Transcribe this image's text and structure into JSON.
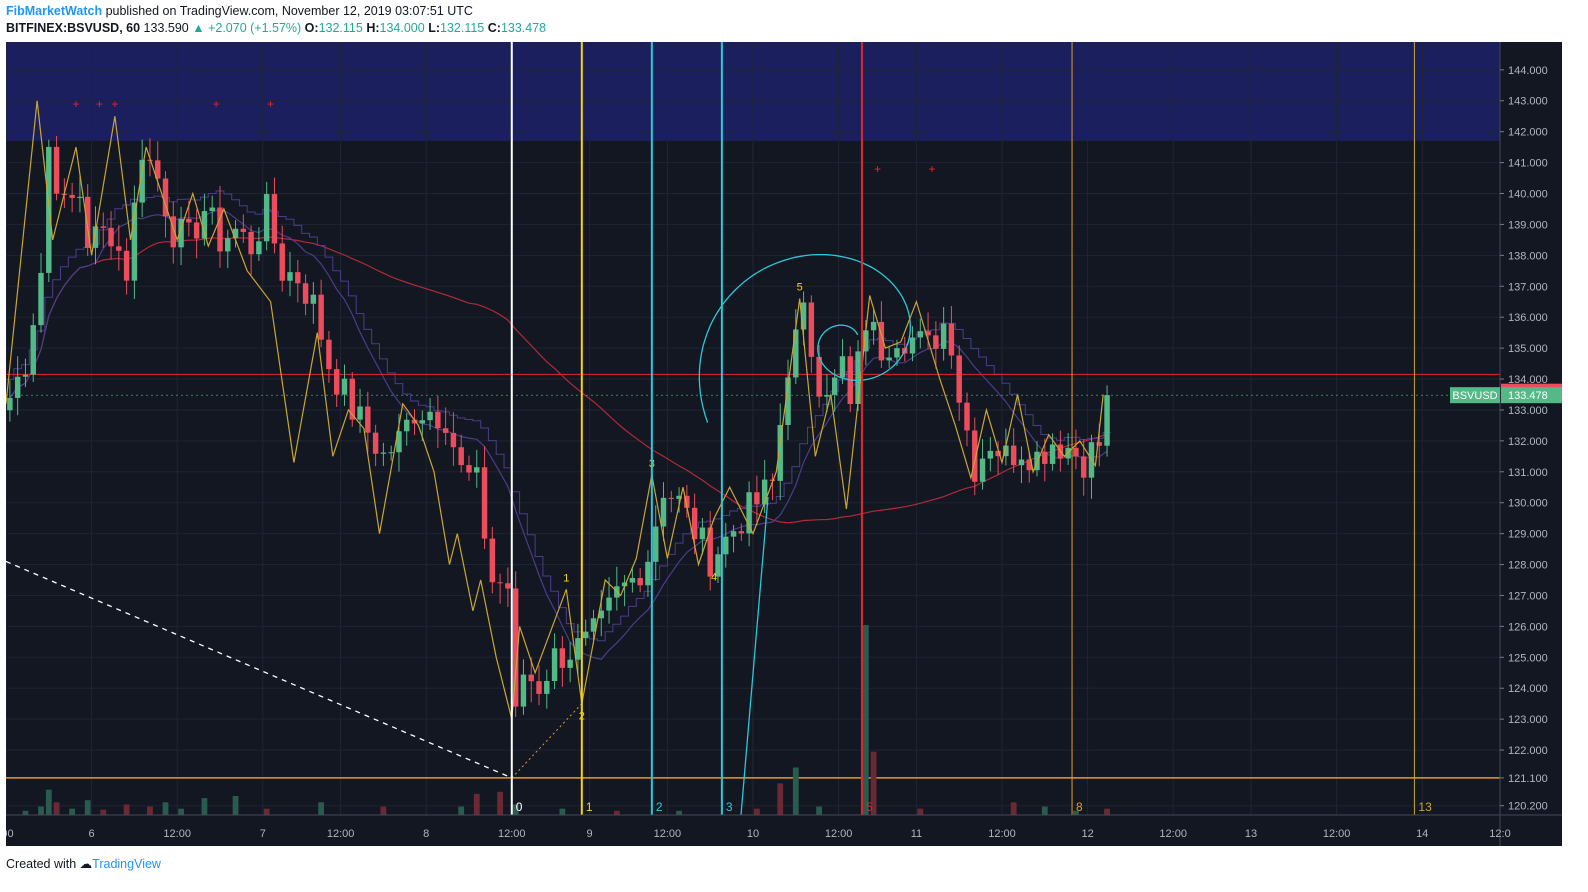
{
  "header": {
    "author": "FibMarketWatch",
    "published": "published on TradingView.com, November 12, 2019 03:07:51 UTC",
    "symbol": "BITFINEX:BSVUSD, 60",
    "last": "133.590",
    "change": "▲ +2.070 (+1.57%)",
    "o_label": "O:",
    "o_value": "132.115",
    "h_label": "H:",
    "h_value": "134.000",
    "l_label": "L:",
    "l_value": "132.115",
    "c_label": "C:",
    "c_value": "133.478"
  },
  "footer": {
    "created_with": "Created with",
    "brand": "TradingView"
  },
  "colors": {
    "background": "#131722",
    "grid": "#1f2433",
    "up": "#53b987",
    "down": "#eb4d5c",
    "zigzag": "#c9a633",
    "spiral": "#2ec7d6",
    "ma_red": "#b02a36",
    "ma_purple": "#4b3c8a",
    "zone": "#1b1f5e",
    "white_line": "#ffffff",
    "yellow_line": "#f5d40c",
    "cyan_line": "#2ec7d6",
    "red_line": "#e5252b",
    "orange_line": "#e39b2b"
  },
  "chart_data": {
    "type": "candlestick",
    "symbol": "BITFINEX:BSVUSD",
    "interval": "60",
    "y_axis": {
      "ylim": [
        119.9,
        144.9
      ],
      "ticks": [
        "120.200",
        "121.100",
        "122.000",
        "123.000",
        "124.000",
        "125.000",
        "126.000",
        "127.000",
        "128.000",
        "129.000",
        "130.000",
        "131.000",
        "132.000",
        "133.000",
        "134.000",
        "135.000",
        "136.000",
        "137.000",
        "138.000",
        "139.000",
        "140.000",
        "141.000",
        "142.000",
        "143.000",
        "144.000"
      ],
      "tick_values": [
        120.2,
        121.1,
        122,
        123,
        124,
        125,
        126,
        127,
        128,
        129,
        130,
        131,
        132,
        133,
        134,
        135,
        136,
        137,
        138,
        139,
        140,
        141,
        142,
        143,
        144
      ]
    },
    "x_axis": {
      "bar_range": [
        0,
        192
      ],
      "labels": [
        {
          "bar": 0,
          "text": ":00"
        },
        {
          "bar": 11,
          "text": "6"
        },
        {
          "bar": 22,
          "text": "12:00"
        },
        {
          "bar": 33,
          "text": "7"
        },
        {
          "bar": 43,
          "text": "12:00"
        },
        {
          "bar": 54,
          "text": "8"
        },
        {
          "bar": 65,
          "text": "12:00"
        },
        {
          "bar": 75,
          "text": "9"
        },
        {
          "bar": 85,
          "text": "12:00"
        },
        {
          "bar": 96,
          "text": "10"
        },
        {
          "bar": 107,
          "text": "12:00"
        },
        {
          "bar": 117,
          "text": "11"
        },
        {
          "bar": 128,
          "text": "12:00"
        },
        {
          "bar": 139,
          "text": "12"
        },
        {
          "bar": 150,
          "text": "12:00"
        },
        {
          "bar": 160,
          "text": "13"
        },
        {
          "bar": 171,
          "text": "12:00"
        },
        {
          "bar": 182,
          "text": "14"
        },
        {
          "bar": 192,
          "text": "12:0"
        }
      ]
    },
    "close_anchors": [
      [
        0,
        133.4
      ],
      [
        2,
        134.6
      ],
      [
        4,
        137.5
      ],
      [
        5,
        141.5
      ],
      [
        7,
        139.5
      ],
      [
        9,
        140.0
      ],
      [
        10,
        138.5
      ],
      [
        13,
        138.8
      ],
      [
        15,
        137.5
      ],
      [
        17,
        141.5
      ],
      [
        19,
        140.5
      ],
      [
        21,
        138.8
      ],
      [
        23,
        138.5
      ],
      [
        25,
        139.5
      ],
      [
        27,
        138.5
      ],
      [
        29,
        138.8
      ],
      [
        31,
        138.3
      ],
      [
        33,
        139.4
      ],
      [
        35,
        137.5
      ],
      [
        37,
        137.3
      ],
      [
        39,
        136.4
      ],
      [
        41,
        134.5
      ],
      [
        44,
        133.0
      ],
      [
        46,
        132.3
      ],
      [
        48,
        131.5
      ],
      [
        50,
        132.0
      ],
      [
        52,
        133.0
      ],
      [
        54,
        133.0
      ],
      [
        56,
        132.8
      ],
      [
        58,
        131.0
      ],
      [
        60,
        130.6
      ],
      [
        62,
        127.5
      ],
      [
        64,
        127.3
      ],
      [
        65,
        123.0
      ],
      [
        66,
        124.5
      ],
      [
        68,
        124.1
      ],
      [
        70,
        125.0
      ],
      [
        72,
        125.2
      ],
      [
        74,
        125.4
      ],
      [
        76,
        126.0
      ],
      [
        78,
        127.0
      ],
      [
        80,
        127.5
      ],
      [
        82,
        128.3
      ],
      [
        84,
        130.5
      ],
      [
        86,
        130.0
      ],
      [
        88,
        129.1
      ],
      [
        90,
        128.2
      ],
      [
        92,
        128.8
      ],
      [
        94,
        129.5
      ],
      [
        96,
        130.0
      ],
      [
        98,
        130.6
      ],
      [
        100,
        134.5
      ],
      [
        102,
        136.0
      ],
      [
        104,
        134.0
      ],
      [
        106,
        133.8
      ],
      [
        107,
        134.5
      ],
      [
        108,
        133.0
      ],
      [
        110,
        135.9
      ],
      [
        112,
        135.0
      ],
      [
        114,
        135.5
      ],
      [
        116,
        135.3
      ],
      [
        118,
        135.0
      ],
      [
        120,
        135.8
      ],
      [
        121,
        135.3
      ],
      [
        122,
        133.5
      ],
      [
        124,
        131.2
      ],
      [
        126,
        132.0
      ],
      [
        128,
        131.5
      ],
      [
        130,
        131.8
      ],
      [
        132,
        131.5
      ],
      [
        134,
        132.0
      ],
      [
        136,
        131.8
      ],
      [
        138,
        131.4
      ],
      [
        140,
        131.9
      ],
      [
        141,
        133.48
      ]
    ],
    "last_price": 133.59,
    "close_price": 133.478,
    "price_label": "133.590",
    "symbol_label": "BSVUSD",
    "symbol_label_price": "133.478",
    "horizontal_lines": [
      134.15,
      121.1
    ],
    "resistance_zone": [
      141.7,
      144.9
    ],
    "zigzag": [
      [
        0,
        133.2
      ],
      [
        4,
        143.0
      ],
      [
        6,
        138.5
      ],
      [
        9,
        141.5
      ],
      [
        11,
        138.0
      ],
      [
        14,
        142.5
      ],
      [
        16,
        138.5
      ],
      [
        18,
        141.5
      ],
      [
        22,
        138.5
      ],
      [
        24,
        140.0
      ],
      [
        26,
        138.3
      ],
      [
        28,
        139.5
      ],
      [
        31,
        137.5
      ],
      [
        34,
        136.5
      ],
      [
        37,
        131.3
      ],
      [
        40,
        135.5
      ],
      [
        42,
        131.5
      ],
      [
        44,
        133.0
      ],
      [
        46,
        132.4
      ],
      [
        48,
        129.0
      ],
      [
        51,
        133.2
      ],
      [
        53,
        132.5
      ],
      [
        55,
        131.0
      ],
      [
        57,
        128.0
      ],
      [
        58,
        129.0
      ],
      [
        60,
        126.5
      ],
      [
        61,
        127.5
      ],
      [
        63,
        125.0
      ],
      [
        65,
        123.0
      ],
      [
        66,
        126.0
      ],
      [
        68,
        124.5
      ],
      [
        72,
        127.2
      ],
      [
        74,
        123.5
      ],
      [
        77,
        127.5
      ],
      [
        79,
        127.0
      ],
      [
        81,
        128.2
      ],
      [
        83,
        130.9
      ],
      [
        85,
        128.2
      ],
      [
        87,
        130.5
      ],
      [
        89,
        128.0
      ],
      [
        91,
        129.5
      ],
      [
        93,
        130.5
      ],
      [
        96,
        129.0
      ],
      [
        99,
        131.0
      ],
      [
        102,
        136.6
      ],
      [
        104,
        131.5
      ],
      [
        106,
        133.5
      ],
      [
        108,
        129.8
      ],
      [
        111,
        136.7
      ],
      [
        113,
        135.0
      ],
      [
        115,
        135.2
      ],
      [
        117,
        136.5
      ],
      [
        120,
        134.0
      ],
      [
        122,
        132.5
      ],
      [
        124,
        130.8
      ],
      [
        126,
        133.0
      ],
      [
        128,
        131.3
      ],
      [
        130,
        133.5
      ],
      [
        132,
        131.0
      ],
      [
        134,
        132.2
      ],
      [
        136,
        131.5
      ],
      [
        138,
        132.0
      ],
      [
        140,
        131.2
      ],
      [
        141,
        133.5
      ]
    ],
    "zigzag_labels": [
      {
        "bar": 72,
        "price": 127.2,
        "text": "1"
      },
      {
        "bar": 74,
        "price": 123.5,
        "text": "2"
      },
      {
        "bar": 83,
        "price": 130.9,
        "text": "3"
      },
      {
        "bar": 91,
        "price": 128.0,
        "text": "4"
      },
      {
        "bar": 102,
        "price": 136.6,
        "text": "5"
      }
    ],
    "fib_time_lines": [
      {
        "bar": 65,
        "label": "0",
        "color": "#ffffff"
      },
      {
        "bar": 74,
        "label": "1",
        "color": "#f5d40c"
      },
      {
        "bar": 83,
        "label": "2",
        "color": "#2ec7d6"
      },
      {
        "bar": 92,
        "label": "3",
        "color": "#2ec7d6"
      },
      {
        "bar": 110,
        "label": "5",
        "color": "#e5252b"
      },
      {
        "bar": 137,
        "label": "8",
        "color": "#e39b2b"
      },
      {
        "bar": 181,
        "label": "13",
        "color": "#c9a633"
      }
    ],
    "red_markers": [
      [
        9,
        142.9
      ],
      [
        12,
        142.9
      ],
      [
        14,
        142.9
      ],
      [
        27,
        142.9
      ],
      [
        34,
        142.9
      ],
      [
        112,
        140.8
      ],
      [
        119,
        140.8
      ]
    ],
    "volume_bars": [
      [
        2,
        4
      ],
      [
        4,
        8
      ],
      [
        5,
        24
      ],
      [
        6,
        12
      ],
      [
        8,
        6
      ],
      [
        10,
        14
      ],
      [
        12,
        5
      ],
      [
        15,
        10
      ],
      [
        18,
        8
      ],
      [
        20,
        12
      ],
      [
        22,
        6
      ],
      [
        25,
        16
      ],
      [
        29,
        18
      ],
      [
        33,
        6
      ],
      [
        40,
        12
      ],
      [
        48,
        8
      ],
      [
        58,
        8
      ],
      [
        60,
        20
      ],
      [
        63,
        22
      ],
      [
        65,
        10
      ],
      [
        71,
        6
      ],
      [
        78,
        4
      ],
      [
        86,
        4
      ],
      [
        96,
        6
      ],
      [
        99,
        30
      ],
      [
        101,
        45
      ],
      [
        104,
        8
      ],
      [
        110,
        180
      ],
      [
        111,
        60
      ],
      [
        117,
        6
      ],
      [
        129,
        12
      ],
      [
        133,
        8
      ],
      [
        137,
        4
      ],
      [
        141,
        6
      ]
    ]
  }
}
